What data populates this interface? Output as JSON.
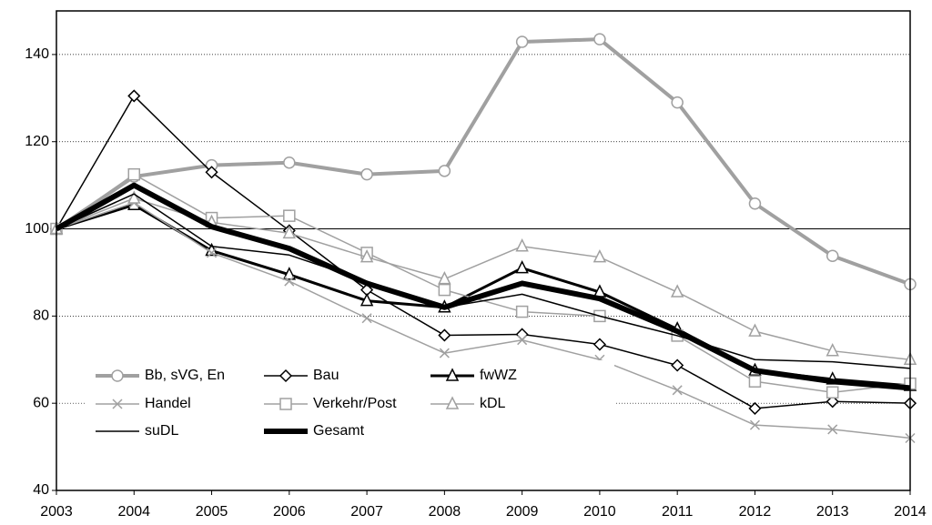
{
  "chart_data": {
    "type": "line",
    "x": [
      2003,
      2004,
      2005,
      2006,
      2007,
      2008,
      2009,
      2010,
      2011,
      2012,
      2013,
      2014
    ],
    "xlim": [
      2003,
      2014
    ],
    "xticks": [
      2003,
      2004,
      2005,
      2006,
      2007,
      2008,
      2009,
      2010,
      2011,
      2012,
      2013,
      2014
    ],
    "ylim": [
      40,
      150
    ],
    "yticks": [
      40,
      60,
      80,
      100,
      120,
      140
    ],
    "grid": true,
    "hline": 100,
    "legend": "lower left",
    "series": [
      {
        "name": "Bb, sVG, En",
        "color": "#a0a0a0",
        "width": 4,
        "marker": "circle",
        "values": [
          100,
          112,
          114.6,
          115.2,
          112.5,
          113.3,
          142.9,
          143.5,
          129,
          105.8,
          93.8,
          87.3
        ]
      },
      {
        "name": "Bau",
        "color": "#000000",
        "width": 1.5,
        "marker": "diamond",
        "values": [
          100,
          130.5,
          113,
          99.6,
          86,
          75.6,
          75.8,
          73.5,
          68.7,
          58.8,
          60.4,
          60
        ]
      },
      {
        "name": "fwWZ",
        "color": "#000000",
        "width": 3,
        "marker": "triangle",
        "values": [
          100,
          105.5,
          95,
          89.5,
          83.5,
          82,
          91,
          85.5,
          77,
          67.5,
          65.5,
          64
        ]
      },
      {
        "name": "Handel",
        "color": "#a0a0a0",
        "width": 1.5,
        "marker": "x",
        "values": [
          100,
          106,
          94.5,
          88,
          79.5,
          71.5,
          74.5,
          70,
          63,
          55,
          54,
          52
        ]
      },
      {
        "name": "Verkehr/Post",
        "color": "#a0a0a0",
        "width": 1.5,
        "marker": "square",
        "values": [
          100,
          112.5,
          102.5,
          103,
          94.5,
          86,
          81,
          80,
          75.5,
          65,
          62.5,
          64.5
        ]
      },
      {
        "name": "kDL",
        "color": "#a0a0a0",
        "width": 1.5,
        "marker": "triangle",
        "values": [
          100,
          107,
          101.5,
          99,
          93.5,
          88.5,
          96,
          93.5,
          85.5,
          76.5,
          72,
          70
        ]
      },
      {
        "name": "suDL",
        "color": "#000000",
        "width": 1.5,
        "marker": "none",
        "values": [
          100,
          108,
          96,
          94,
          88,
          82,
          85,
          80,
          75.5,
          70,
          69.5,
          68
        ]
      },
      {
        "name": "Gesamt",
        "color": "#000000",
        "width": 6,
        "marker": "none",
        "values": [
          100,
          110,
          100.5,
          95.5,
          87.5,
          82,
          87.5,
          84,
          76.5,
          67.5,
          65,
          63.5
        ]
      }
    ]
  }
}
